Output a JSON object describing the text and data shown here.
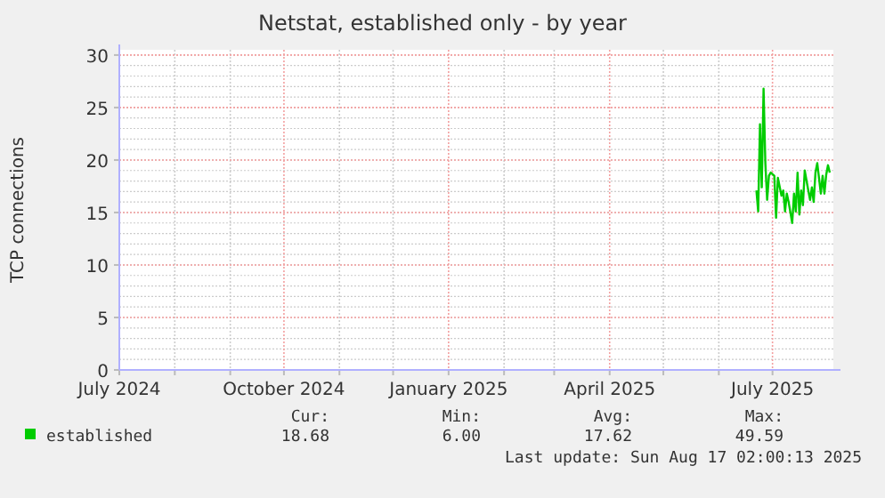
{
  "chart_data": {
    "type": "line",
    "title": "Netstat, established only - by year",
    "ylabel": "TCP connections",
    "x": [
      "2025-06-22",
      "2025-06-23",
      "2025-06-24",
      "2025-06-25",
      "2025-06-26",
      "2025-06-27",
      "2025-06-28",
      "2025-06-29",
      "2025-06-30",
      "2025-07-02",
      "2025-07-03",
      "2025-07-04",
      "2025-07-06",
      "2025-07-07",
      "2025-07-08",
      "2025-07-09",
      "2025-07-10",
      "2025-07-12",
      "2025-07-13",
      "2025-07-14",
      "2025-07-15",
      "2025-07-16",
      "2025-07-17",
      "2025-07-18",
      "2025-07-19",
      "2025-07-21",
      "2025-07-22",
      "2025-07-23",
      "2025-07-24",
      "2025-07-25",
      "2025-07-26",
      "2025-07-28",
      "2025-07-29",
      "2025-07-30",
      "2025-07-31",
      "2025-08-01",
      "2025-08-02"
    ],
    "series": [
      {
        "name": "established",
        "color": "#00cc00",
        "values": [
          17.1,
          15.1,
          23.4,
          17.4,
          26.8,
          19.7,
          16.2,
          18.5,
          18.8,
          18.5,
          14.5,
          18.3,
          16.6,
          17.1,
          15.1,
          16.8,
          16.0,
          14.0,
          16.8,
          15.1,
          18.8,
          14.8,
          17.1,
          15.7,
          19.0,
          17.1,
          16.2,
          17.4,
          16.0,
          18.8,
          19.7,
          16.8,
          18.5,
          16.8,
          18.6,
          19.5,
          18.8
        ]
      }
    ],
    "xlim": [
      "2024-07-01",
      "2025-08-04"
    ],
    "xticks": [
      {
        "value": "2024-07-01",
        "label": "July 2024"
      },
      {
        "value": "2024-08-01",
        "label": null
      },
      {
        "value": "2024-09-01",
        "label": null
      },
      {
        "value": "2024-10-01",
        "label": "October 2024"
      },
      {
        "value": "2024-11-01",
        "label": null
      },
      {
        "value": "2024-12-01",
        "label": null
      },
      {
        "value": "2025-01-01",
        "label": "January 2025"
      },
      {
        "value": "2025-02-01",
        "label": null
      },
      {
        "value": "2025-03-01",
        "label": null
      },
      {
        "value": "2025-04-01",
        "label": "April 2025"
      },
      {
        "value": "2025-05-01",
        "label": null
      },
      {
        "value": "2025-06-01",
        "label": null
      },
      {
        "value": "2025-07-01",
        "label": "July 2025"
      }
    ],
    "ylim": [
      0,
      30.5
    ],
    "yticks": [
      0,
      5,
      10,
      15,
      20,
      25,
      30
    ],
    "grid": true,
    "legend": "bottom left",
    "line_style": "solid",
    "marker": "none",
    "annotations": [
      "Cur:",
      "Min:",
      "Avg:",
      "Max:",
      "18.68",
      "6.00",
      "17.62",
      "49.59",
      "Last update: Sun Aug 17 02:00:13 2025"
    ]
  }
}
